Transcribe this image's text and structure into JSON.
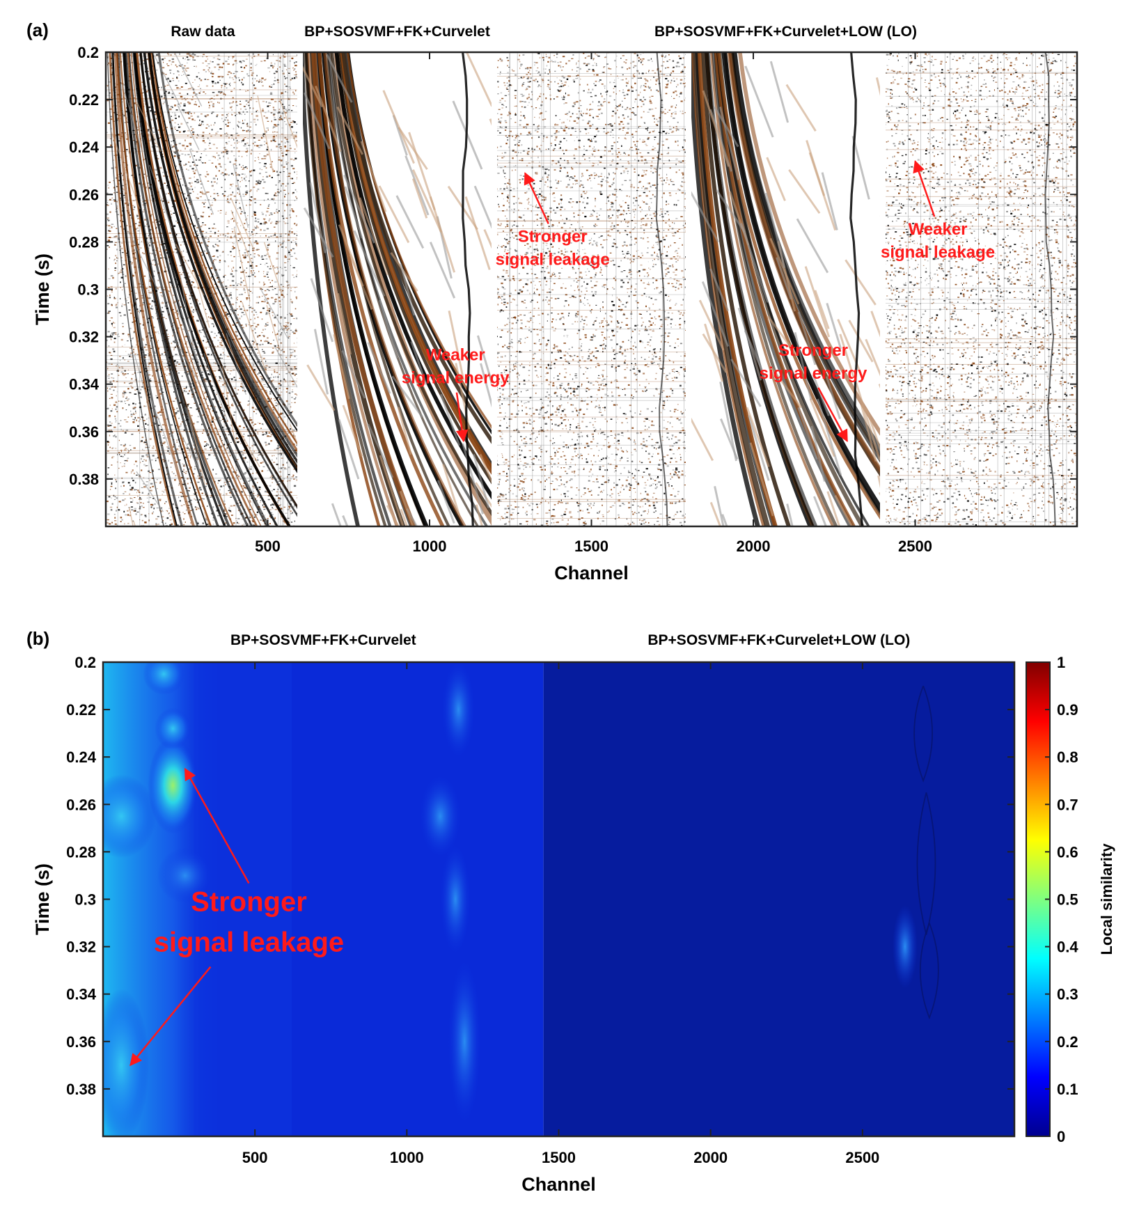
{
  "chart_data": [
    {
      "panel": "(a)",
      "type": "heatmap",
      "subtitles": [
        "Raw data",
        "BP+SOSVMF+FK+Curvelet",
        "BP+SOSVMF+FK+Curvelet+LOW (LO)"
      ],
      "xlabel": "Channel",
      "ylabel": "Time (s)",
      "xlim": [
        0,
        3000
      ],
      "ylim": [
        0.2,
        0.4
      ],
      "x_ticks": [
        500,
        1000,
        1500,
        2000,
        2500
      ],
      "y_ticks": [
        0.2,
        0.22,
        0.24,
        0.26,
        0.28,
        0.3,
        0.32,
        0.34,
        0.36,
        0.38
      ],
      "y_tick_labels": [
        "0.2",
        "0.22",
        "0.24",
        "0.26",
        "0.28",
        "0.3",
        "0.32",
        "0.34",
        "0.36",
        "0.38"
      ],
      "section_boundaries": [
        600,
        1200,
        1800,
        2400
      ],
      "colors": {
        "positive": "#8b4513",
        "negative": "#000000",
        "background": "#ffffff"
      },
      "annotations": [
        {
          "lines": [
            "Stronger",
            "signal leakage"
          ],
          "text_at": [
            1380,
            0.28
          ],
          "arrow_to": [
            1295,
            0.251
          ]
        },
        {
          "lines": [
            "Weaker",
            "signal energy"
          ],
          "text_at": [
            1080,
            0.33
          ],
          "arrow_to": [
            1105,
            0.364
          ]
        },
        {
          "lines": [
            "Weaker",
            "signal leakage"
          ],
          "text_at": [
            2570,
            0.277
          ],
          "arrow_to": [
            2500,
            0.246
          ]
        },
        {
          "lines": [
            "Stronger",
            "signal energy"
          ],
          "text_at": [
            2185,
            0.328
          ],
          "arrow_to": [
            2290,
            0.364
          ]
        }
      ]
    },
    {
      "panel": "(b)",
      "type": "heatmap",
      "subtitles": [
        "BP+SOSVMF+FK+Curvelet",
        "BP+SOSVMF+FK+Curvelet+LOW (LO)"
      ],
      "xlabel": "Channel",
      "ylabel": "Time (s)",
      "xlim": [
        0,
        3000
      ],
      "ylim": [
        0.2,
        0.4
      ],
      "x_ticks": [
        500,
        1000,
        1500,
        2000,
        2500
      ],
      "y_ticks": [
        0.2,
        0.22,
        0.24,
        0.26,
        0.28,
        0.3,
        0.32,
        0.34,
        0.36,
        0.38
      ],
      "y_tick_labels": [
        "0.2",
        "0.22",
        "0.24",
        "0.26",
        "0.28",
        "0.3",
        "0.32",
        "0.34",
        "0.36",
        "0.38"
      ],
      "colorbar": {
        "label": "Local similarity",
        "range": [
          0,
          1
        ],
        "ticks": [
          "0",
          "0.1",
          "0.2",
          "0.3",
          "0.4",
          "0.5",
          "0.6",
          "0.7",
          "0.8",
          "0.9",
          "1"
        ],
        "colormap": "jet"
      },
      "annotation": {
        "lines": [
          "Stronger",
          "signal leakage"
        ],
        "arrows_to": [
          [
            270,
            0.245
          ],
          [
            90,
            0.37
          ]
        ]
      }
    }
  ]
}
